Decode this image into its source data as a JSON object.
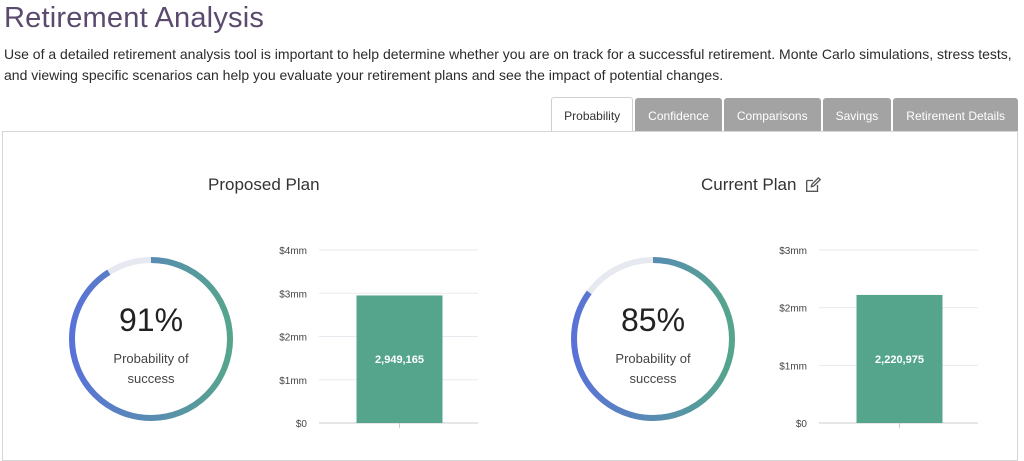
{
  "page": {
    "title": "Retirement Analysis",
    "description": "Use of a detailed retirement analysis tool is important to help determine whether you are on track for a successful retirement. Monte Carlo simulations, stress tests, and viewing specific scenarios can help you evaluate your retirement plans and see the impact of potential changes."
  },
  "tabs": [
    {
      "label": "Probability",
      "active": true
    },
    {
      "label": "Confidence",
      "active": false
    },
    {
      "label": "Comparisons",
      "active": false
    },
    {
      "label": "Savings",
      "active": false
    },
    {
      "label": "Retirement Details",
      "active": false
    }
  ],
  "plans": [
    {
      "title": "Proposed Plan",
      "probability_pct": "91%",
      "probability_value": 0.91,
      "probability_label": "Probability of success",
      "editable": false
    },
    {
      "title": "Current Plan",
      "probability_pct": "85%",
      "probability_value": 0.85,
      "probability_label": "Probability of success",
      "editable": true
    }
  ],
  "colors": {
    "title": "#5a4a6e",
    "gauge_start": "#5a72d8",
    "gauge_end": "#55a58c",
    "gauge_track": "#e6e9f0",
    "bar": "#55a58c",
    "tab_inactive": "#a3a3a3"
  },
  "icons": {
    "edit": "edit-icon"
  },
  "chart_data": [
    {
      "type": "bar",
      "categories": [
        ""
      ],
      "values": [
        2949165
      ],
      "value_label": "2,949,165",
      "yticks": [
        "$0",
        "$1mm",
        "$2mm",
        "$3mm",
        "$4mm"
      ],
      "ylim": [
        0,
        4000000
      ],
      "grid": true
    },
    {
      "type": "bar",
      "categories": [
        ""
      ],
      "values": [
        2220975
      ],
      "value_label": "2,220,975",
      "yticks": [
        "$0",
        "$1mm",
        "$2mm",
        "$3mm"
      ],
      "ylim": [
        0,
        3000000
      ],
      "grid": true
    }
  ]
}
